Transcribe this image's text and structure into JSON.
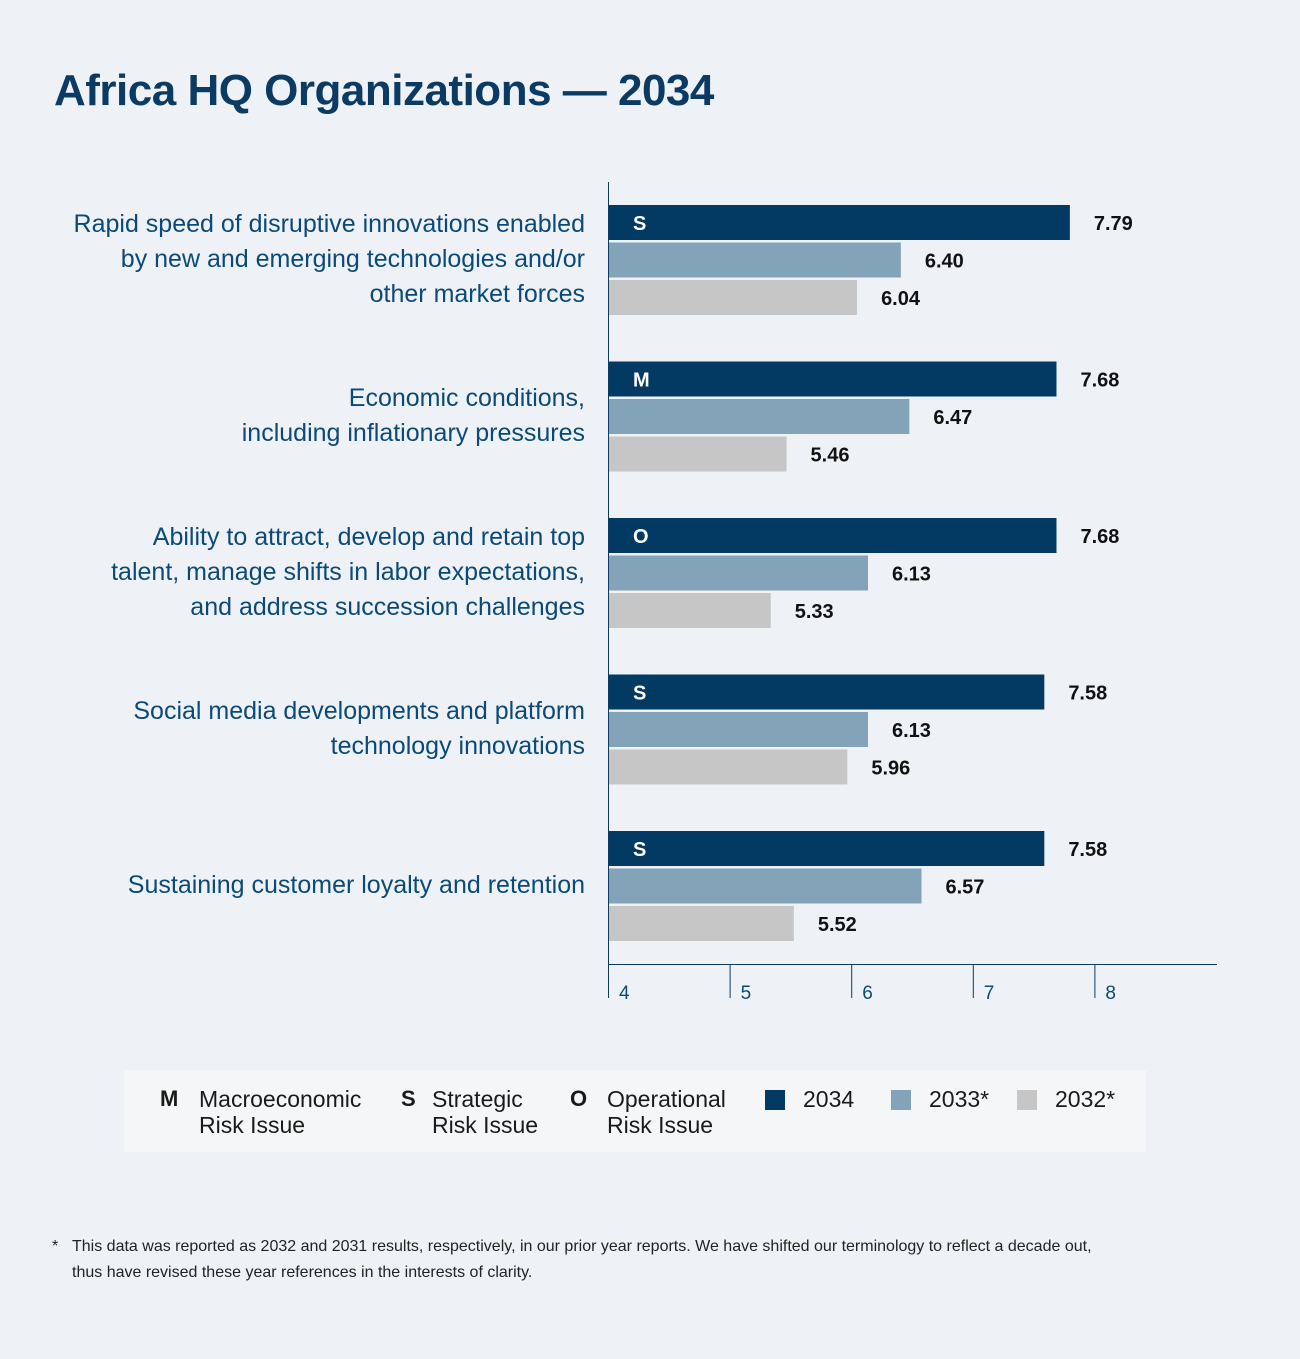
{
  "title": "Africa HQ Organizations — 2034",
  "colors": {
    "y2034": "#023a63",
    "y2033": "#82a3b8",
    "y2032": "#c6c6c6",
    "label": "#0b4a78"
  },
  "chart_data": {
    "type": "bar",
    "orientation": "horizontal",
    "title": "Africa HQ Organizations — 2034",
    "xlim": [
      4,
      9
    ],
    "xticks": [
      "4",
      "5",
      "6",
      "7",
      "8"
    ],
    "categories": [
      [
        "Rapid speed of disruptive innovations enabled",
        "by new and emerging technologies and/or",
        "other market forces"
      ],
      [
        "Economic conditions,",
        "including inflationary pressures"
      ],
      [
        "Ability to attract, develop and retain top",
        "talent, manage shifts in labor expectations,",
        "and address succession challenges"
      ],
      [
        "Social media developments and platform",
        "technology innovations"
      ],
      [
        "Sustaining customer loyalty and retention"
      ]
    ],
    "risk_type": [
      "S",
      "M",
      "O",
      "S",
      "S"
    ],
    "series": [
      {
        "name": "2034",
        "values": [
          7.79,
          7.68,
          7.68,
          7.58,
          7.58
        ],
        "labels": [
          "7.79",
          "7.68",
          "7.68",
          "7.58",
          "7.58"
        ]
      },
      {
        "name": "2033*",
        "values": [
          6.4,
          6.47,
          6.13,
          6.13,
          6.57
        ],
        "labels": [
          "6.40",
          "6.47",
          "6.13",
          "6.13",
          "6.57"
        ]
      },
      {
        "name": "2032*",
        "values": [
          6.04,
          5.46,
          5.33,
          5.96,
          5.52
        ],
        "labels": [
          "6.04",
          "5.46",
          "5.33",
          "5.96",
          "5.52"
        ]
      }
    ]
  },
  "legend": {
    "keys": [
      {
        "key": "M",
        "line1": "Macroeconomic",
        "line2": "Risk Issue"
      },
      {
        "key": "S",
        "line1": "Strategic",
        "line2": "Risk Issue"
      },
      {
        "key": "O",
        "line1": "Operational",
        "line2": "Risk Issue"
      }
    ],
    "years": [
      "2034",
      "2033*",
      "2032*"
    ]
  },
  "footnote": {
    "star": "*",
    "line1": "This data was reported as 2032 and 2031 results, respectively, in our prior year reports. We have shifted our terminology to reflect a decade out,",
    "line2": "thus have revised these year references in the interests of clarity."
  }
}
